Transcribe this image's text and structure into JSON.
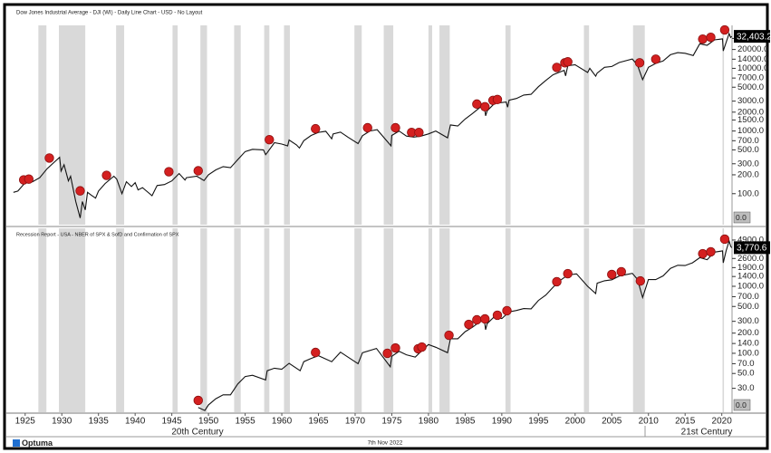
{
  "chart_data": [
    {
      "type": "line",
      "title": "Dow Jones Industrial Average - DJI (WI) - Daily Line Chart - USD - No Layout",
      "log_scale": true,
      "xlim": [
        1923.3,
        2021.4
      ],
      "ylim": [
        32,
        48500
      ],
      "yticks": [
        {
          "value": 100,
          "label": "100.0"
        },
        {
          "value": 200,
          "label": "200.0"
        },
        {
          "value": 300,
          "label": "300.0"
        },
        {
          "value": 500,
          "label": "500.0"
        },
        {
          "value": 700,
          "label": "700.0"
        },
        {
          "value": 1000,
          "label": "1000.0"
        },
        {
          "value": 1500,
          "label": "1500.0"
        },
        {
          "value": 2000,
          "label": "2000.0"
        },
        {
          "value": 3000,
          "label": "3000.0"
        },
        {
          "value": 5000,
          "label": "5000.0"
        },
        {
          "value": 7000,
          "label": "7000.0"
        },
        {
          "value": 10000,
          "label": "10000.0"
        },
        {
          "value": 14000,
          "label": "14000.0"
        },
        {
          "value": 20000,
          "label": "20000.0"
        },
        {
          "value": 30000,
          "label": "30000.0"
        }
      ],
      "color": "#111111",
      "x": [
        1923.4,
        1924,
        1925,
        1925.5,
        1926,
        1927,
        1928,
        1929.7,
        1929.9,
        1930.3,
        1930.9,
        1931.2,
        1931.9,
        1932.5,
        1932.8,
        1933.2,
        1933.5,
        1934,
        1934.6,
        1935,
        1935.9,
        1937.1,
        1937.5,
        1938.2,
        1938.8,
        1939.5,
        1940,
        1940.4,
        1941,
        1942.3,
        1943,
        1944,
        1945,
        1946,
        1946.8,
        1947,
        1948.4,
        1949.4,
        1950,
        1951,
        1952,
        1953,
        1954,
        1955,
        1956,
        1957.5,
        1957.8,
        1958,
        1959,
        1960,
        1960.8,
        1961,
        1962,
        1962.4,
        1963,
        1964,
        1965,
        1966,
        1966.8,
        1967,
        1968,
        1969,
        1970.4,
        1971,
        1972,
        1973,
        1974.9,
        1975,
        1976,
        1977,
        1978,
        1979,
        1980,
        1981,
        1982.6,
        1983,
        1984,
        1985,
        1986,
        1987.6,
        1987.8,
        1988,
        1989,
        1990.6,
        1990.8,
        1991,
        1992,
        1993,
        1994,
        1995,
        1996,
        1997,
        1998.5,
        1998.7,
        1999,
        2000,
        2001.7,
        2002,
        2002.8,
        2003,
        2004,
        2005,
        2006,
        2007.8,
        2008.5,
        2009.2,
        2010,
        2011,
        2012,
        2013,
        2014,
        2015,
        2016.1,
        2017,
        2018,
        2019,
        2020.1,
        2020.2,
        2020.6,
        2021.0,
        2021.2,
        2021.35
      ],
      "values": [
        105,
        110,
        150,
        165,
        155,
        180,
        250,
        381,
        230,
        290,
        160,
        190,
        75,
        41,
        75,
        55,
        105,
        95,
        85,
        110,
        145,
        190,
        170,
        100,
        155,
        130,
        150,
        115,
        125,
        93,
        135,
        140,
        160,
        210,
        165,
        180,
        190,
        162,
        200,
        240,
        270,
        260,
        350,
        470,
        510,
        500,
        420,
        450,
        650,
        620,
        580,
        720,
        600,
        535,
        700,
        850,
        950,
        990,
        750,
        900,
        960,
        800,
        630,
        840,
        1000,
        1050,
        580,
        850,
        1000,
        830,
        800,
        830,
        900,
        1000,
        780,
        1250,
        1200,
        1550,
        1900,
        2700,
        1750,
        2100,
        2750,
        2900,
        2400,
        3100,
        3300,
        3750,
        3850,
        5100,
        6400,
        7900,
        9300,
        7600,
        11000,
        11400,
        8600,
        10000,
        7500,
        8400,
        10400,
        10700,
        12400,
        14100,
        11300,
        6600,
        10400,
        12000,
        13100,
        16500,
        17800,
        17400,
        16000,
        24700,
        23300,
        28500,
        29500,
        19000,
        26000,
        36000,
        31000,
        32403.2
      ],
      "last_value": {
        "value": 32403.2,
        "label": "32,403.2"
      },
      "indicator_label": "0.0",
      "signals": {
        "color": "#d42020",
        "x": [
          1924.8,
          1925.5,
          1928.3,
          1932.5,
          1936.1,
          1944.6,
          1948.6,
          1958.3,
          1964.6,
          1971.7,
          1975.5,
          1977.7,
          1978.7,
          1986.6,
          1987.7,
          1988.8,
          1989.4,
          1997.5,
          1998.6,
          1999.0,
          2008.8,
          2011.0,
          2017.4,
          2018.5,
          2020.4
        ],
        "values": [
          166,
          171,
          371,
          111,
          196,
          224,
          232,
          727,
          1086,
          1127,
          1127,
          950,
          950,
          2690,
          2440,
          3080,
          3180,
          10350,
          12250,
          12700,
          12250,
          14000,
          29300,
          31300,
          41000
        ]
      },
      "recession_color": "#d9d9d9",
      "recessions": [
        [
          1926.8,
          1927.9
        ],
        [
          1929.6,
          1933.2
        ],
        [
          1937.4,
          1938.5
        ],
        [
          1945.1,
          1945.8
        ],
        [
          1948.9,
          1949.8
        ],
        [
          1953.5,
          1954.4
        ],
        [
          1957.6,
          1958.3
        ],
        [
          1960.3,
          1961.1
        ],
        [
          1969.9,
          1970.9
        ],
        [
          1973.9,
          1975.2
        ],
        [
          1980.0,
          1980.5
        ],
        [
          1981.5,
          1982.9
        ],
        [
          1990.5,
          1991.2
        ],
        [
          2001.2,
          2001.9
        ],
        [
          2007.9,
          2009.5
        ],
        [
          2020.1,
          2020.3
        ]
      ]
    },
    {
      "type": "line",
      "title": "Recession Report - USA - NBER of SPX & SofD and Confirmation of SPX",
      "log_scale": true,
      "xlim": [
        1923.3,
        2021.4
      ],
      "ylim": [
        13.2,
        7330
      ],
      "yticks": [
        {
          "value": 30,
          "label": "30.0"
        },
        {
          "value": 50,
          "label": "50.0"
        },
        {
          "value": 70,
          "label": "70.0"
        },
        {
          "value": 100,
          "label": "100.0"
        },
        {
          "value": 140,
          "label": "140.0"
        },
        {
          "value": 200,
          "label": "200.0"
        },
        {
          "value": 300,
          "label": "300.0"
        },
        {
          "value": 500,
          "label": "500.0"
        },
        {
          "value": 700,
          "label": "700.0"
        },
        {
          "value": 1000,
          "label": "1000.0"
        },
        {
          "value": 1400,
          "label": "1400.0"
        },
        {
          "value": 1900,
          "label": "1900.0"
        },
        {
          "value": 2600,
          "label": "2600.0"
        },
        {
          "value": 4900,
          "label": "4900.0"
        }
      ],
      "xticks": [
        1925,
        1930,
        1935,
        1940,
        1945,
        1950,
        1955,
        1960,
        1965,
        1970,
        1975,
        1980,
        1985,
        1990,
        1995,
        2000,
        2005,
        2010,
        2015,
        2020
      ],
      "x_groups": [
        "20th Century",
        "21st Century"
      ],
      "color": "#111111",
      "x": [
        1948.6,
        1949.5,
        1950,
        1951,
        1952,
        1953,
        1954,
        1955,
        1956,
        1957.8,
        1958,
        1959,
        1960,
        1961,
        1962.5,
        1963,
        1964,
        1965,
        1966.8,
        1968,
        1970.4,
        1971,
        1972.9,
        1974.8,
        1975,
        1976,
        1977,
        1978.2,
        1979,
        1980,
        1981,
        1982.6,
        1983,
        1984,
        1985,
        1986,
        1987.6,
        1987.8,
        1988,
        1989,
        1990,
        1991,
        1992,
        1993,
        1994,
        1995,
        1996,
        1997,
        1998,
        1999,
        2000.2,
        2001.7,
        2002.8,
        2003,
        2004,
        2005,
        2006,
        2007.8,
        2008.5,
        2009.2,
        2010,
        2011,
        2012,
        2013,
        2014,
        2015,
        2016,
        2017,
        2018,
        2019,
        2020.1,
        2020.2,
        2020.6,
        2021.0,
        2021.2,
        2021.35
      ],
      "values": [
        15.5,
        14,
        17,
        21,
        24,
        24,
        35,
        45,
        47,
        40,
        55,
        60,
        58,
        71,
        55,
        75,
        84,
        92,
        75,
        104,
        70,
        102,
        118,
        63,
        90,
        107,
        95,
        88,
        107,
        135,
        123,
        102,
        165,
        165,
        210,
        245,
        330,
        225,
        277,
        353,
        330,
        415,
        435,
        465,
        460,
        615,
        740,
        970,
        1230,
        1470,
        1530,
        1000,
        780,
        1110,
        1210,
        1250,
        1420,
        1560,
        1270,
        680,
        1260,
        1260,
        1430,
        1850,
        2060,
        2040,
        2240,
        2670,
        2500,
        3230,
        3380,
        2240,
        3400,
        4750,
        4000,
        3770.6
      ],
      "last_value": {
        "value": 3770.6,
        "label": "3,770.6"
      },
      "indicator_label": "0.0",
      "signals": {
        "color": "#d42020",
        "x": [
          1948.6,
          1964.6,
          1974.4,
          1975.5,
          1978.6,
          1979.1,
          1982.8,
          1985.5,
          1986.6,
          1987.7,
          1989.4,
          1990.7,
          1997.5,
          1999.0,
          2005.0,
          2006.3,
          2008.9,
          2017.4,
          2018.5,
          2020.4
        ],
        "values": [
          19.8,
          103,
          100,
          120,
          117,
          124,
          186,
          270,
          316,
          326,
          370,
          432,
          1170,
          1545,
          1500,
          1650,
          1200,
          3060,
          3270,
          5050
        ]
      },
      "recession_color": "#d9d9d9",
      "recessions": [
        [
          1926.8,
          1927.9
        ],
        [
          1929.6,
          1933.2
        ],
        [
          1937.4,
          1938.5
        ],
        [
          1945.1,
          1945.8
        ],
        [
          1948.9,
          1949.8
        ],
        [
          1953.5,
          1954.4
        ],
        [
          1957.6,
          1958.3
        ],
        [
          1960.3,
          1961.1
        ],
        [
          1969.9,
          1970.9
        ],
        [
          1973.9,
          1975.2
        ],
        [
          1980.0,
          1980.5
        ],
        [
          1981.5,
          1982.9
        ],
        [
          1990.5,
          1991.2
        ],
        [
          2001.2,
          2001.9
        ],
        [
          2007.9,
          2009.5
        ],
        [
          2020.1,
          2020.3
        ]
      ]
    }
  ],
  "footer": {
    "logo": "Optuma",
    "date": "7th Nov 2022"
  }
}
